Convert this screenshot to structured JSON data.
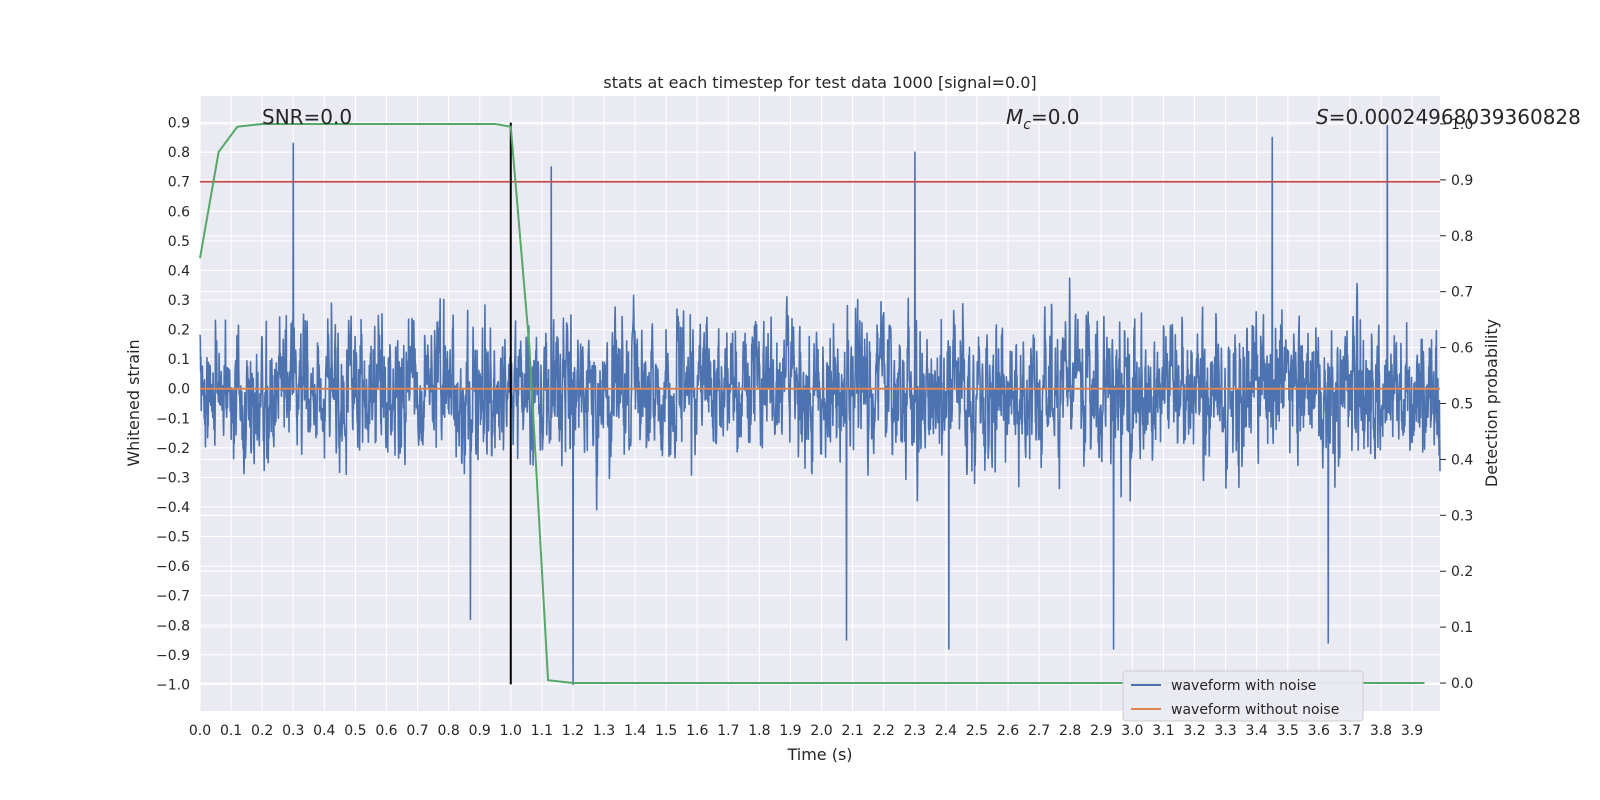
{
  "chart_data": {
    "type": "line",
    "title": "stats at each timestep for test data 1000 [signal=0.0]",
    "xlabel": "Time (s)",
    "ylabel_left": "Whitened strain",
    "ylabel_right": "Detection probability",
    "xlim": [
      0.0,
      3.99
    ],
    "ylim_left": [
      -1.09,
      0.99
    ],
    "ylim_right": [
      -0.05,
      1.05
    ],
    "x_ticks": [
      "0.0",
      "0.1",
      "0.2",
      "0.3",
      "0.4",
      "0.5",
      "0.6",
      "0.7",
      "0.8",
      "0.9",
      "1.0",
      "1.1",
      "1.2",
      "1.3",
      "1.4",
      "1.5",
      "1.6",
      "1.7",
      "1.8",
      "1.9",
      "2.0",
      "2.1",
      "2.2",
      "2.3",
      "2.4",
      "2.5",
      "2.6",
      "2.7",
      "2.8",
      "2.9",
      "3.0",
      "3.1",
      "3.2",
      "3.3",
      "3.4",
      "3.5",
      "3.6",
      "3.7",
      "3.8",
      "3.9"
    ],
    "y_ticks_left": [
      "0.9",
      "0.8",
      "0.7",
      "0.6",
      "0.5",
      "0.4",
      "0.3",
      "0.2",
      "0.1",
      "0.0",
      "−0.1",
      "−0.2",
      "−0.3",
      "−0.4",
      "−0.5",
      "−0.6",
      "−0.7",
      "−0.8",
      "−0.9",
      "−1.0"
    ],
    "y_ticks_right": [
      "1.0",
      "0.9",
      "0.8",
      "0.7",
      "0.6",
      "0.5",
      "0.4",
      "0.3",
      "0.2",
      "0.1",
      "0.0"
    ],
    "annotations": {
      "snr": "SNR=0.0",
      "mc_symbol": "M",
      "mc_sub": "c",
      "mc_value": "=0.0",
      "s_symbol": "S",
      "s_value": "=0.00024968039360828"
    },
    "threshold": {
      "value": 0.7,
      "axis": "left",
      "color": "#c44e52"
    },
    "event_marker": {
      "x": 1.0,
      "y_from": -1.0,
      "y_to": 0.9,
      "color": "#000000"
    },
    "series": [
      {
        "name": "waveform with noise",
        "color": "#4c72b0",
        "axis": "left",
        "style": "dense-noise",
        "amplitude_typical": 0.4,
        "peaks": [
          {
            "x": 0.3,
            "y": 0.83
          },
          {
            "x": 1.13,
            "y": 0.75
          },
          {
            "x": 2.3,
            "y": 0.8
          },
          {
            "x": 3.45,
            "y": 0.85
          },
          {
            "x": 3.82,
            "y": 0.89
          },
          {
            "x": 1.2,
            "y": -1.0
          },
          {
            "x": 2.41,
            "y": -0.88
          },
          {
            "x": 2.94,
            "y": -0.88
          },
          {
            "x": 2.08,
            "y": -0.85
          },
          {
            "x": 3.63,
            "y": -0.86
          },
          {
            "x": 0.87,
            "y": -0.78
          }
        ]
      },
      {
        "name": "waveform without noise",
        "color": "#dd8452",
        "axis": "left",
        "x": [
          0.0,
          3.99
        ],
        "y": [
          0.0,
          0.0
        ]
      },
      {
        "name": "detection probability",
        "color": "#55a868",
        "axis": "right",
        "x": [
          0.0,
          0.06,
          0.12,
          0.2,
          0.5,
          0.95,
          1.0,
          1.06,
          1.12,
          1.2,
          1.5,
          2.0,
          2.5,
          3.0,
          3.5,
          3.94
        ],
        "y": [
          0.76,
          0.95,
          0.995,
          1.0,
          1.0,
          1.0,
          0.995,
          0.6,
          0.005,
          0.0,
          0.0,
          0.0,
          0.0,
          0.0,
          0.0,
          0.0
        ]
      }
    ],
    "legend": {
      "position": "lower-right",
      "entries": [
        {
          "label": "waveform with noise",
          "color": "#4c72b0"
        },
        {
          "label": "waveform without noise",
          "color": "#dd8452"
        }
      ]
    },
    "grid": true
  },
  "colors": {
    "plot_background": "#eaeaf2",
    "grid": "#ffffff",
    "text": "#262626"
  }
}
